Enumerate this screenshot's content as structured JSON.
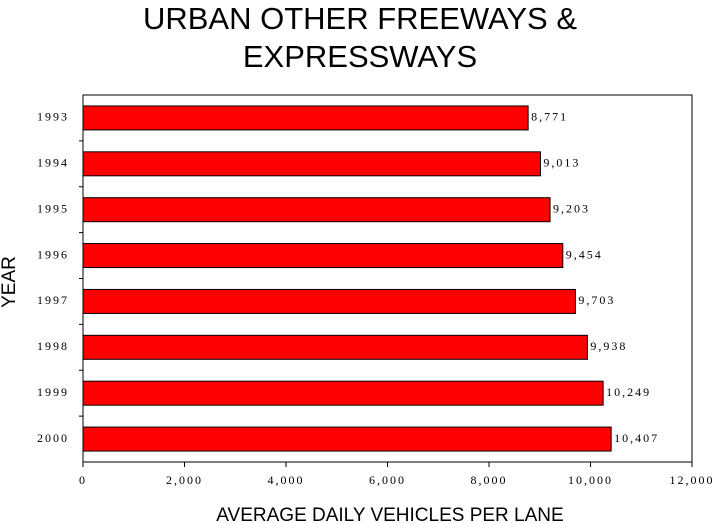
{
  "chart_data": {
    "type": "bar",
    "orientation": "horizontal",
    "title": "URBAN OTHER FREEWAYS & EXPRESSWAYS",
    "x_label": "AVERAGE DAILY VEHICLES PER LANE",
    "y_label": "YEAR",
    "categories": [
      "1993",
      "1994",
      "1995",
      "1996",
      "1997",
      "1998",
      "1999",
      "2000"
    ],
    "values": [
      8771,
      9013,
      9203,
      9454,
      9703,
      9938,
      10249,
      10407
    ],
    "value_labels": [
      "8,771",
      "9,013",
      "9,203",
      "9,454",
      "9,703",
      "9,938",
      "10,249",
      "10,407"
    ],
    "color": "#ff0000",
    "xlim": [
      0,
      12000
    ],
    "xticks": [
      0,
      {
        "value": 2000,
        "label": "2,000"
      },
      {
        "value": 4000,
        "label": "4,000"
      },
      {
        "value": 6000,
        "label": "6,000"
      },
      {
        "value": 8000,
        "label": "8,000"
      },
      {
        "value": 10000,
        "label": "10,000"
      },
      {
        "value": 12000,
        "label": "12,000"
      }
    ],
    "grid": false
  }
}
